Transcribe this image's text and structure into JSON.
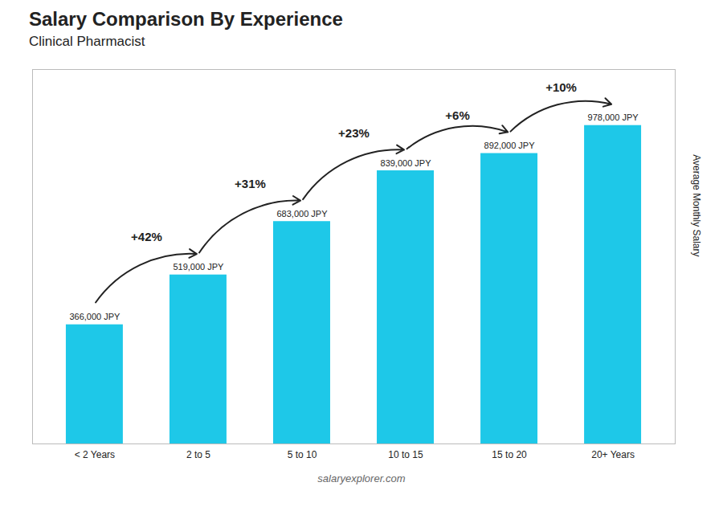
{
  "chart_data": {
    "type": "bar",
    "title": "Salary Comparison By Experience",
    "subtitle": "Clinical Pharmacist",
    "categories": [
      "< 2 Years",
      "2 to 5",
      "5 to 10",
      "10 to 15",
      "15 to 20",
      "20+ Years"
    ],
    "values": [
      366000,
      519000,
      683000,
      839000,
      892000,
      978000
    ],
    "value_labels": [
      "366,000 JPY",
      "519,000 JPY",
      "683,000 JPY",
      "839,000 JPY",
      "892,000 JPY",
      "978,000 JPY"
    ],
    "data_labels": true,
    "color": "#1ec8e8",
    "ylabel": "Average Monthly Salary",
    "ylim": [
      0,
      1150000
    ],
    "tick_labels": "x",
    "grid": false,
    "annotations": [
      "+42%",
      "+31%",
      "+23%",
      "+6%",
      "+10%"
    ],
    "caption": "salaryexplorer.com"
  }
}
